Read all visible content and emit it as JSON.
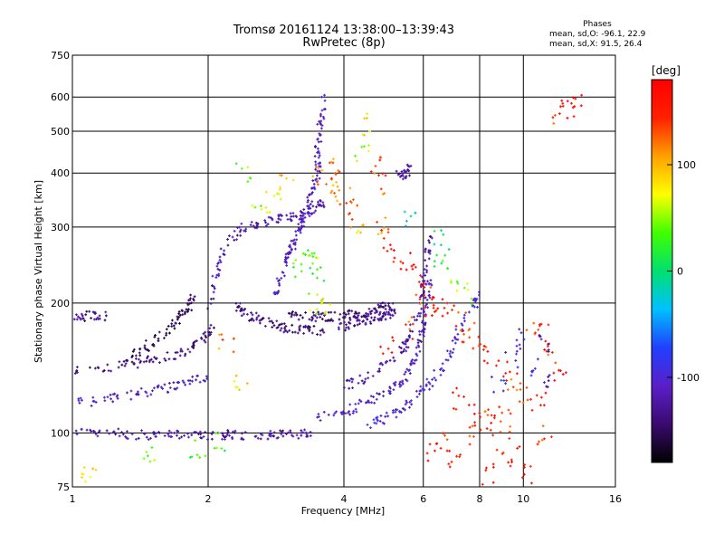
{
  "header": {
    "title_line1": "Tromsø 20161124 13:38:00–13:39:43",
    "title_line2": "RwPretec (8p)",
    "stats_heading": "Phases",
    "stats_o": "mean, sd,O: -96.1, 22.9",
    "stats_x": "mean, sd,X:  91.5, 26.4"
  },
  "chart_data": {
    "type": "scatter",
    "title": "Tromsø 20161124 13:38:00–13:39:43",
    "subtitle": "RwPretec (8p)",
    "xlabel": "Frequency [MHz]",
    "ylabel": "Stationary phase Virtual Height [km]",
    "x_scale": "log",
    "y_scale": "log",
    "xlim": [
      1,
      16
    ],
    "ylim": [
      75,
      750
    ],
    "x_ticks": [
      {
        "value": 1,
        "label": "1"
      },
      {
        "value": 2,
        "label": "2"
      },
      {
        "value": 4,
        "label": "4"
      },
      {
        "value": 6,
        "label": "6"
      },
      {
        "value": 8,
        "label": "8"
      },
      {
        "value": 10,
        "label": "10"
      },
      {
        "value": 16,
        "label": "16"
      }
    ],
    "y_ticks": [
      {
        "value": 75,
        "label": "75"
      },
      {
        "value": 100,
        "label": "100"
      },
      {
        "value": 200,
        "label": "200"
      },
      {
        "value": 300,
        "label": "300"
      },
      {
        "value": 400,
        "label": "400"
      },
      {
        "value": 500,
        "label": "500"
      },
      {
        "value": 600,
        "label": "600"
      },
      {
        "value": 750,
        "label": "750"
      }
    ],
    "grid": true,
    "colorbar": {
      "label": "[deg]",
      "range": [
        -180,
        180
      ],
      "ticks": [
        {
          "value": 100,
          "label": "100"
        },
        {
          "value": 0,
          "label": "0"
        },
        {
          "value": -100,
          "label": "-100"
        }
      ],
      "colors": [
        "#000000",
        "#3a0a6e",
        "#5a1fc8",
        "#2040ff",
        "#00c0ff",
        "#00e070",
        "#40ff00",
        "#ffff00",
        "#ffa000",
        "#ff2000",
        "#ff0000"
      ]
    },
    "traces": [
      {
        "name": "",
        "phase": -120,
        "points": [
          [
            1.0,
            100
          ],
          [
            1.2,
            100
          ],
          [
            1.4,
            99
          ],
          [
            1.6,
            99
          ],
          [
            1.8,
            99
          ],
          [
            2.0,
            99
          ],
          [
            2.2,
            99
          ],
          [
            2.5,
            99
          ],
          [
            2.8,
            99
          ],
          [
            3.1,
            99
          ],
          [
            3.4,
            100
          ]
        ]
      },
      {
        "name": "",
        "phase": -110,
        "points": [
          [
            1.0,
            117
          ],
          [
            1.2,
            120
          ],
          [
            1.4,
            123
          ],
          [
            1.6,
            127
          ],
          [
            1.8,
            132
          ],
          [
            2.0,
            135
          ]
        ]
      },
      {
        "name": "",
        "phase": -140,
        "points": [
          [
            1.0,
            140
          ],
          [
            1.2,
            141
          ],
          [
            1.4,
            145
          ],
          [
            1.6,
            150
          ],
          [
            1.8,
            155
          ],
          [
            1.95,
            165
          ],
          [
            2.05,
            175
          ]
        ]
      },
      {
        "name": "",
        "phase": -150,
        "points": [
          [
            1.3,
            145
          ],
          [
            1.45,
            158
          ],
          [
            1.6,
            170
          ],
          [
            1.7,
            182
          ],
          [
            1.8,
            192
          ],
          [
            1.85,
            205
          ]
        ]
      },
      {
        "name": "",
        "phase": -130,
        "points": [
          [
            1.0,
            185
          ],
          [
            1.1,
            187
          ],
          [
            1.2,
            186
          ]
        ]
      },
      {
        "name": "",
        "phase": -120,
        "points": [
          [
            2.0,
            190
          ],
          [
            2.1,
            240
          ],
          [
            2.2,
            275
          ],
          [
            2.4,
            300
          ],
          [
            2.7,
            310
          ],
          [
            3.0,
            315
          ],
          [
            3.2,
            320
          ],
          [
            3.4,
            330
          ],
          [
            3.6,
            345
          ]
        ]
      },
      {
        "name": "",
        "phase": -140,
        "points": [
          [
            2.3,
            198
          ],
          [
            2.4,
            190
          ],
          [
            2.6,
            183
          ],
          [
            2.8,
            178
          ],
          [
            3.0,
            175
          ],
          [
            3.3,
            173
          ],
          [
            3.6,
            172
          ]
        ]
      },
      {
        "name": "",
        "phase": -110,
        "points": [
          [
            2.8,
            208
          ],
          [
            2.9,
            230
          ],
          [
            3.0,
            255
          ],
          [
            3.1,
            275
          ],
          [
            3.2,
            300
          ],
          [
            3.3,
            325
          ],
          [
            3.4,
            360
          ],
          [
            3.5,
            400
          ],
          [
            3.5,
            450
          ],
          [
            3.55,
            520
          ],
          [
            3.6,
            600
          ]
        ]
      },
      {
        "name": "",
        "phase": -140,
        "points": [
          [
            3.0,
            188
          ],
          [
            3.3,
            186
          ],
          [
            3.6,
            186
          ],
          [
            3.9,
            187
          ],
          [
            4.2,
            188
          ],
          [
            4.5,
            190
          ],
          [
            4.8,
            195
          ],
          [
            5.1,
            200
          ]
        ]
      },
      {
        "name": "",
        "phase": -130,
        "points": [
          [
            3.9,
            175
          ],
          [
            4.2,
            180
          ],
          [
            4.5,
            183
          ],
          [
            4.8,
            186
          ],
          [
            5.0,
            188
          ],
          [
            5.2,
            190
          ]
        ]
      },
      {
        "name": "",
        "phase": -110,
        "points": [
          [
            3.5,
            108
          ],
          [
            4.0,
            112
          ],
          [
            4.5,
            118
          ],
          [
            5.0,
            125
          ],
          [
            5.4,
            132
          ],
          [
            5.7,
            145
          ],
          [
            5.9,
            160
          ],
          [
            6.0,
            178
          ],
          [
            6.1,
            200
          ],
          [
            6.2,
            230
          ]
        ]
      },
      {
        "name": "",
        "phase": -120,
        "points": [
          [
            4.0,
            128
          ],
          [
            4.5,
            135
          ],
          [
            5.0,
            145
          ],
          [
            5.5,
            160
          ],
          [
            5.8,
            185
          ],
          [
            6.0,
            215
          ],
          [
            6.1,
            250
          ],
          [
            6.2,
            290
          ]
        ]
      },
      {
        "name": "",
        "phase": -100,
        "points": [
          [
            4.5,
            105
          ],
          [
            5.0,
            108
          ],
          [
            5.5,
            115
          ],
          [
            6.0,
            125
          ],
          [
            6.5,
            140
          ],
          [
            7.0,
            160
          ],
          [
            7.5,
            185
          ],
          [
            8.0,
            210
          ]
        ]
      },
      {
        "name": "",
        "phase": -120,
        "points": [
          [
            5.3,
            395
          ],
          [
            5.45,
            400
          ],
          [
            5.6,
            410
          ]
        ]
      }
    ],
    "scatter_points": [
      [
        3.5,
        390,
        120
      ],
      [
        3.7,
        370,
        110
      ],
      [
        3.9,
        380,
        130
      ],
      [
        4.0,
        360,
        115
      ],
      [
        3.8,
        410,
        125
      ],
      [
        4.2,
        330,
        140
      ],
      [
        4.3,
        300,
        90
      ],
      [
        4.4,
        450,
        60
      ],
      [
        4.5,
        520,
        80
      ],
      [
        3.3,
        250,
        40
      ],
      [
        3.4,
        270,
        50
      ],
      [
        3.5,
        230,
        20
      ],
      [
        3.2,
        240,
        30
      ],
      [
        3.45,
        200,
        60
      ],
      [
        3.6,
        195,
        80
      ],
      [
        4.7,
        420,
        140
      ],
      [
        4.8,
        380,
        130
      ],
      [
        4.9,
        300,
        120
      ],
      [
        5.0,
        280,
        150
      ],
      [
        5.2,
        260,
        160
      ],
      [
        5.5,
        250,
        170
      ],
      [
        5.8,
        230,
        150
      ],
      [
        6.0,
        210,
        140
      ],
      [
        6.4,
        200,
        170
      ],
      [
        6.8,
        190,
        160
      ],
      [
        7.2,
        180,
        140
      ],
      [
        7.6,
        170,
        130
      ],
      [
        8.0,
        160,
        150
      ],
      [
        8.5,
        150,
        160
      ],
      [
        9.0,
        140,
        170
      ],
      [
        9.5,
        130,
        140
      ],
      [
        10.0,
        125,
        130
      ],
      [
        10.5,
        180,
        150
      ],
      [
        11.0,
        170,
        160
      ],
      [
        11.5,
        150,
        140
      ],
      [
        12.0,
        140,
        170
      ],
      [
        9.2,
        110,
        130
      ],
      [
        8.6,
        105,
        150
      ],
      [
        7.8,
        100,
        150
      ],
      [
        6.8,
        95,
        140
      ],
      [
        6.2,
        90,
        160
      ],
      [
        7.0,
        85,
        150
      ],
      [
        8.3,
        80,
        170
      ],
      [
        9.6,
        88,
        150
      ],
      [
        10.8,
        120,
        160
      ],
      [
        12.5,
        560,
        160
      ],
      [
        13.0,
        580,
        170
      ],
      [
        11.8,
        540,
        140
      ],
      [
        6.5,
        250,
        20
      ],
      [
        7.0,
        230,
        40
      ],
      [
        7.4,
        210,
        60
      ],
      [
        6.6,
        280,
        0
      ],
      [
        5.6,
        320,
        -20
      ],
      [
        2.4,
        400,
        40
      ],
      [
        2.6,
        350,
        60
      ],
      [
        2.8,
        340,
        80
      ],
      [
        3.0,
        380,
        100
      ],
      [
        2.2,
        160,
        120
      ],
      [
        2.35,
        130,
        80
      ],
      [
        1.1,
        80,
        90
      ],
      [
        1.05,
        78,
        70
      ],
      [
        1.5,
        90,
        40
      ],
      [
        1.9,
        92,
        20
      ],
      [
        2.1,
        95,
        30
      ],
      [
        5.0,
        160,
        150
      ],
      [
        5.5,
        175,
        130
      ],
      [
        6.3,
        185,
        160
      ],
      [
        7.2,
        120,
        150
      ],
      [
        7.8,
        110,
        160
      ],
      [
        8.2,
        115,
        130
      ],
      [
        9.0,
        95,
        150
      ],
      [
        10.2,
        80,
        160
      ],
      [
        11.2,
        100,
        140
      ],
      [
        10.0,
        165,
        -100
      ],
      [
        10.5,
        140,
        -90
      ],
      [
        11.0,
        160,
        -110
      ],
      [
        9.5,
        150,
        -100
      ],
      [
        8.8,
        130,
        -90
      ],
      [
        11.3,
        130,
        -120
      ]
    ]
  }
}
